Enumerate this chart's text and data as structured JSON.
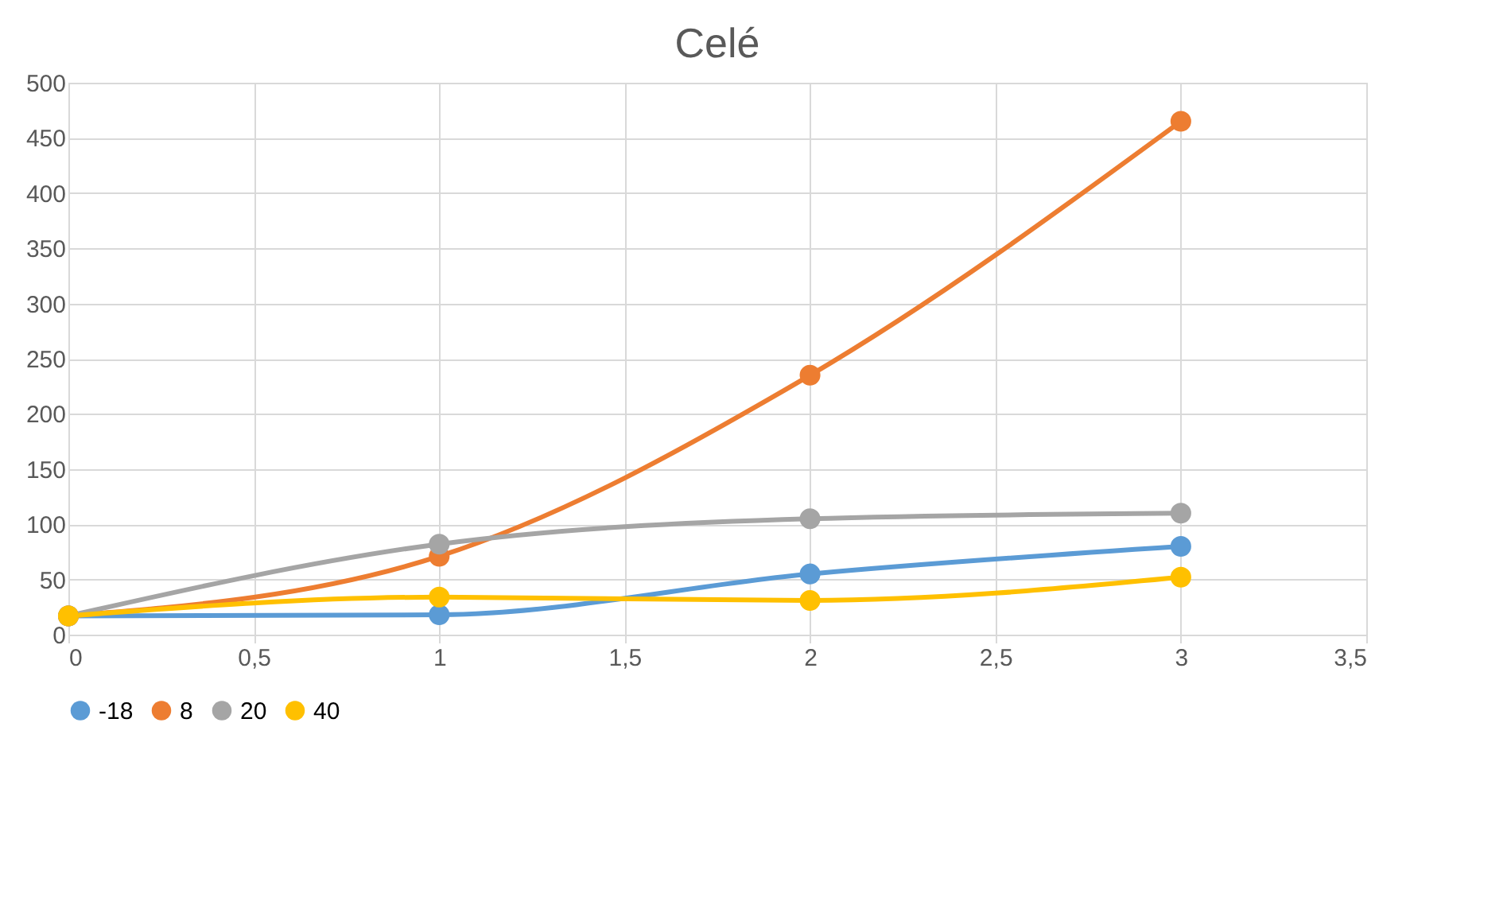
{
  "chart_data": {
    "type": "line",
    "title": "Celé",
    "x": [
      0,
      1,
      2,
      3
    ],
    "series": [
      {
        "name": "-18",
        "color": "#5b9bd5",
        "values": [
          17,
          18,
          55,
          80
        ]
      },
      {
        "name": "8",
        "color": "#ed7d31",
        "values": [
          17,
          71,
          235,
          465
        ]
      },
      {
        "name": "20",
        "color": "#a5a5a5",
        "values": [
          17,
          82,
          105,
          110
        ]
      },
      {
        "name": "40",
        "color": "#ffc000",
        "values": [
          17,
          34,
          31,
          52
        ]
      }
    ],
    "xlim": [
      0,
      3.5
    ],
    "xticks": [
      0,
      {
        "value": 0.5,
        "label": "0,5"
      },
      1,
      {
        "value": 1.5,
        "label": "1,5"
      },
      2,
      {
        "value": 2.5,
        "label": "2,5"
      },
      3,
      {
        "value": 3.5,
        "label": "3,5"
      }
    ],
    "ylim": [
      0,
      500
    ],
    "yticks": [
      0,
      50,
      100,
      150,
      200,
      250,
      300,
      350,
      400,
      450,
      500
    ],
    "grid": true,
    "legend": "bottom",
    "marker": "circle",
    "line_style": "solid"
  }
}
